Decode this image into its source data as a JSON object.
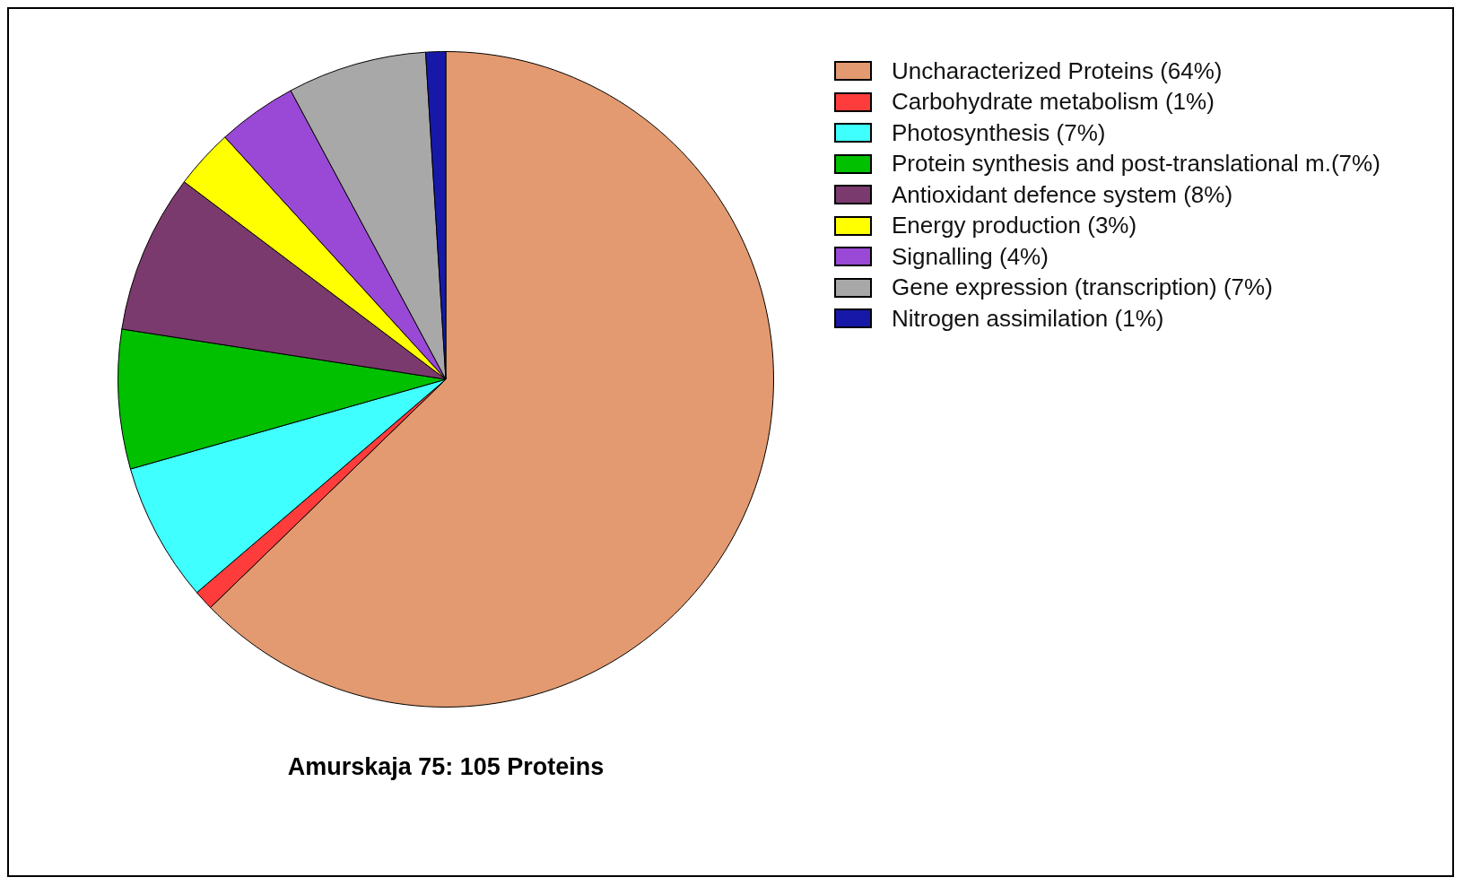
{
  "chart_data": {
    "type": "pie",
    "title": "Amurskaja 75: 105 Proteins",
    "categories": [
      "Uncharacterized Proteins (64%)",
      "Carbohydrate metabolism (1%)",
      "Photosynthesis (7%)",
      "Protein synthesis and post-translational m.(7%)",
      "Antioxidant defence system (8%)",
      "Energy production (3%)",
      "Signalling (4%)",
      "Gene expression (transcription) (7%)",
      "Nitrogen assimilation (1%)"
    ],
    "values": [
      64,
      1,
      7,
      7,
      8,
      3,
      4,
      7,
      1
    ],
    "colors": [
      "#e39a70",
      "#ff3c3c",
      "#40ffff",
      "#00c000",
      "#7b3a6e",
      "#ffff00",
      "#9a48d6",
      "#a8a8a8",
      "#1818a8"
    ],
    "legend": "top right"
  }
}
